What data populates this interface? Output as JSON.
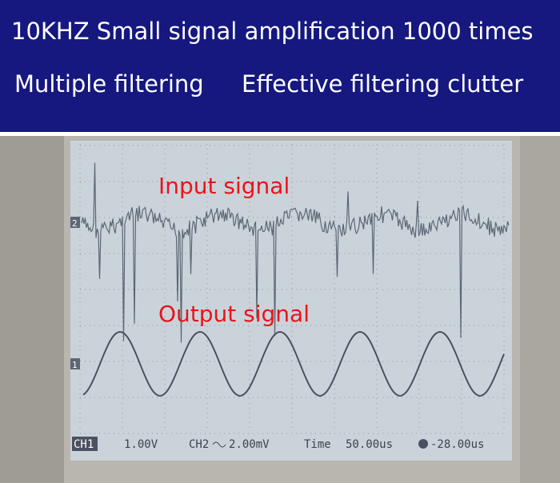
{
  "header": {
    "line1": "10KHZ Small signal amplification 1000 times",
    "line2a": "Multiple filtering",
    "line2b": "Effective filtering clutter"
  },
  "labels": {
    "input": "Input signal",
    "output": "Output signal"
  },
  "markers": {
    "ch2": "2",
    "ch1": "1"
  },
  "status": {
    "ch1": "CH1",
    "ch1_scale": "1.00V",
    "ch2": "CH2",
    "ch2_scale": "2.00mV",
    "time": "Time",
    "time_scale": "50.00us",
    "trigger": "-28.00us"
  }
}
